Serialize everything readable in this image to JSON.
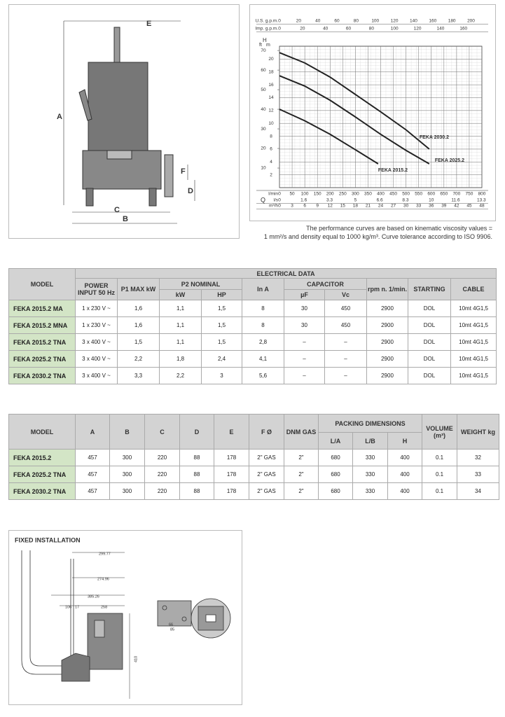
{
  "pump_drawing": {
    "labels": [
      "E",
      "A",
      "F",
      "D",
      "C",
      "B"
    ]
  },
  "chart_data": {
    "type": "line",
    "y_label": "H",
    "y_unit": "m",
    "y2_unit": "ft",
    "q_label": "Q",
    "xlim": [
      0,
      800
    ],
    "xticks": [
      0,
      50,
      100,
      150,
      200,
      250,
      300,
      350,
      400,
      450,
      500,
      550,
      600,
      650,
      700,
      750,
      800
    ],
    "x_label": "l/min",
    "ylim": [
      0,
      22
    ],
    "yticks": [
      2,
      4,
      6,
      8,
      10,
      12,
      14,
      16,
      18,
      20
    ],
    "y2lim": [
      0,
      72.18
    ],
    "y2ticks": [
      10,
      20,
      30,
      40,
      50,
      60,
      70
    ],
    "extra_x_axes": [
      {
        "name": "U.S. g.p.m.",
        "lim": [
          0,
          211.34
        ],
        "ticks": [
          0,
          20,
          40,
          60,
          80,
          100,
          120,
          140,
          160,
          180,
          200
        ],
        "position": "top"
      },
      {
        "name": "Imp. g.p.m.",
        "lim": [
          0,
          175.98
        ],
        "ticks": [
          0,
          20,
          40,
          60,
          80,
          100,
          120,
          140,
          160
        ],
        "position": "top"
      },
      {
        "name": "l/s",
        "lim": [
          0,
          13.33
        ],
        "ticks": [
          0,
          1.6,
          3.3,
          5,
          6.6,
          8.3,
          10,
          11.6,
          13.3
        ],
        "position": "bottom"
      },
      {
        "name": "m³/h",
        "lim": [
          0,
          48
        ],
        "ticks": [
          0,
          3,
          6,
          9,
          12,
          15,
          18,
          21,
          24,
          27,
          30,
          33,
          36,
          39,
          42,
          45,
          48
        ],
        "position": "bottom"
      }
    ],
    "series": [
      {
        "name": "FEKA 2030.2",
        "color": "#222222",
        "x": [
          0,
          100,
          200,
          300,
          400,
          500,
          592
        ],
        "values": [
          21,
          19.4,
          17.2,
          14.5,
          11.8,
          9,
          6
        ]
      },
      {
        "name": "FEKA 2025.2",
        "color": "#222222",
        "x": [
          0,
          100,
          200,
          300,
          400,
          500,
          592
        ],
        "values": [
          17.4,
          15.8,
          13.6,
          11,
          8.3,
          5.8,
          3.7
        ]
      },
      {
        "name": "FEKA 2015.2",
        "color": "#222222",
        "x": [
          0,
          100,
          200,
          300,
          390
        ],
        "values": [
          12.2,
          10.4,
          8.3,
          5.9,
          3.7
        ]
      }
    ],
    "grid": true
  },
  "note": [
    "The performance curves are based on kinematic viscosity values =",
    "1 mm²/s and density equal to 1000 kg/m³. Curve tolerance according to ISO 9906."
  ],
  "electrical_table": {
    "header": {
      "model": "MODEL",
      "group": "ELECTRICAL DATA",
      "power": "POWER INPUT 50 Hz",
      "p1": "P1 MAX kW",
      "p2": "P2 NOMINAL",
      "kw": "kW",
      "hp": "HP",
      "in": "In A",
      "capacitor": "CAPACITOR",
      "uf": "µF",
      "vc": "Vc",
      "rpm": "rpm n. 1/min.",
      "starting": "STARTING",
      "cable": "CABLE"
    },
    "rows": [
      [
        "FEKA 2015.2 MA",
        "1 x 230 V ~",
        "1,6",
        "1,1",
        "1,5",
        "8",
        "30",
        "450",
        "2900",
        "DOL",
        "10mt 4G1,5"
      ],
      [
        "FEKA 2015.2 MNA",
        "1 x 230 V ~",
        "1,6",
        "1,1",
        "1,5",
        "8",
        "30",
        "450",
        "2900",
        "DOL",
        "10mt 4G1,5"
      ],
      [
        "FEKA 2015.2 TNA",
        "3 x 400 V ~",
        "1,5",
        "1,1",
        "1,5",
        "2,8",
        "–",
        "–",
        "2900",
        "DOL",
        "10mt 4G1,5"
      ],
      [
        "FEKA 2025.2 TNA",
        "3 x 400 V ~",
        "2,2",
        "1,8",
        "2,4",
        "4,1",
        "–",
        "–",
        "2900",
        "DOL",
        "10mt 4G1,5"
      ],
      [
        "FEKA 2030.2 TNA",
        "3 x 400 V ~",
        "3,3",
        "2,2",
        "3",
        "5,6",
        "–",
        "–",
        "2900",
        "DOL",
        "10mt 4G1,5"
      ]
    ]
  },
  "dimensions_table": {
    "header": {
      "model": "MODEL",
      "a": "A",
      "b": "B",
      "c": "C",
      "d": "D",
      "e": "E",
      "f": "F Ø",
      "dnm": "DNM GAS",
      "packing": "PACKING DIMENSIONS",
      "la": "L/A",
      "lb": "L/B",
      "h": "H",
      "volume": "VOLUME (m³)",
      "weight": "WEIGHT kg"
    },
    "rows": [
      [
        "FEKA 2015.2",
        "457",
        "300",
        "220",
        "88",
        "178",
        "2\" GAS",
        "2\"",
        "680",
        "330",
        "400",
        "0.1",
        "32"
      ],
      [
        "FEKA 2025.2 TNA",
        "457",
        "300",
        "220",
        "88",
        "178",
        "2\" GAS",
        "2\"",
        "680",
        "330",
        "400",
        "0.1",
        "33"
      ],
      [
        "FEKA 2030.2 TNA",
        "457",
        "300",
        "220",
        "88",
        "178",
        "2\" GAS",
        "2\"",
        "680",
        "330",
        "400",
        "0.1",
        "34"
      ]
    ]
  },
  "installation": {
    "title": "FIXED INSTALLATION",
    "dims": [
      "299.77",
      "274.96",
      "385.26",
      "106",
      "17",
      "258",
      "410",
      "66",
      "85"
    ]
  }
}
